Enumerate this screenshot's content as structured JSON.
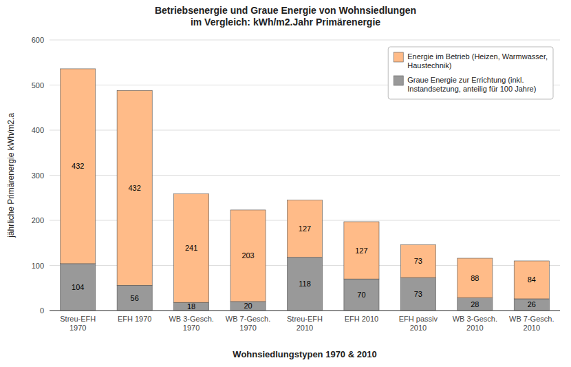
{
  "chart_data": {
    "type": "bar",
    "stacked": true,
    "title": "Betriebsenergie und Graue Energie von Wohnsiedlungen\nim Vergleich:  kWh/m2.Jahr  Primärenergie",
    "x_label": "Wohnsiedlungstypen 1970 & 2010",
    "y_label": "jährliche Primärenergie kWh/m2.a",
    "categories": [
      "Streu-EFH\n1970",
      "EFH 1970",
      "WB 3-Gesch.\n1970",
      "WB 7-Gesch.\n1970",
      "Streu-EFH\n2010",
      "EFH 2010",
      "EFH passiv\n2010",
      "WB 3-Gesch.\n2010",
      "WB 7-Gesch.\n2010"
    ],
    "series": [
      {
        "name": "Graue Energie zur Errichtung (inkl.\nInstandsetzung, anteilig für 100 Jahre)",
        "color": "#999999",
        "values": [
          104,
          56,
          18,
          20,
          118,
          70,
          73,
          28,
          26
        ]
      },
      {
        "name": "Energie im Betrieb (Heizen, Warmwasser,\nHaustechnik)",
        "color": "#FFBB88",
        "values": [
          432,
          432,
          241,
          203,
          127,
          127,
          73,
          88,
          84
        ]
      }
    ],
    "ylim": [
      0,
      600
    ],
    "yticks": [
      0,
      100,
      200,
      300,
      400,
      500,
      600
    ],
    "grid": true,
    "legend": "upper right",
    "data_labels": true
  }
}
